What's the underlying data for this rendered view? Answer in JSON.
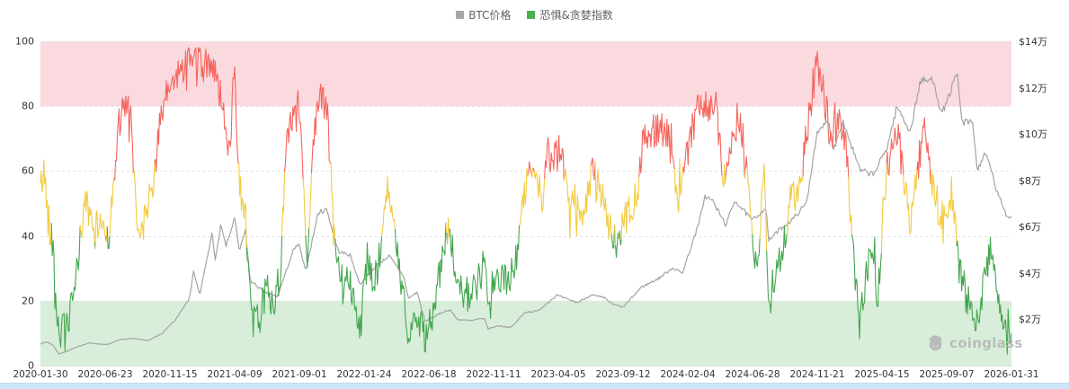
{
  "legend": {
    "items": [
      {
        "label": "BTC价格",
        "color": "#a6a6a6"
      },
      {
        "label": "恐惧&贪婪指数",
        "color": "#4caf50"
      }
    ]
  },
  "watermark": {
    "text": "coinglass"
  },
  "chart_data": {
    "type": "line",
    "x_axis": {
      "start": "2020-01-30",
      "end": "2026-01-31",
      "tick_labels": [
        "2020-01-30",
        "2020-06-23",
        "2020-11-15",
        "2021-04-09",
        "2021-09-01",
        "2022-01-24",
        "2022-06-18",
        "2022-11-11",
        "2023-04-05",
        "2023-09-12",
        "2024-02-04",
        "2024-06-28",
        "2024-11-21",
        "2025-04-15",
        "2025-09-07",
        "2026-01-31"
      ]
    },
    "y_left": {
      "min": 0,
      "max": 100,
      "ticks": [
        0,
        20,
        40,
        60,
        80,
        100
      ]
    },
    "y_right": {
      "min": 0,
      "max": 140000,
      "ticks": [
        {
          "value": 20000,
          "label": "$2万"
        },
        {
          "value": 40000,
          "label": "$4万"
        },
        {
          "value": 60000,
          "label": "$6万"
        },
        {
          "value": 80000,
          "label": "$8万"
        },
        {
          "value": 100000,
          "label": "$10万"
        },
        {
          "value": 120000,
          "label": "$12万"
        },
        {
          "value": 140000,
          "label": "$14万"
        }
      ]
    },
    "bands": [
      {
        "axis": "left",
        "from": 80,
        "to": 100,
        "color": "#fbdadf"
      },
      {
        "axis": "left",
        "from": 0,
        "to": 20,
        "color": "#d8eeda"
      }
    ],
    "grid": {
      "horizontal_dashed_at": [
        20,
        40,
        60,
        80,
        100
      ]
    },
    "series": [
      {
        "name": "BTC价格",
        "axis": "right",
        "color": "#a3a3a3",
        "noise": 0.015,
        "seed": 7,
        "samples": 900,
        "points": [
          [
            0.0,
            9400
          ],
          [
            0.007,
            10300
          ],
          [
            0.013,
            8800
          ],
          [
            0.019,
            5000
          ],
          [
            0.028,
            6400
          ],
          [
            0.042,
            8700
          ],
          [
            0.05,
            9800
          ],
          [
            0.056,
            9500
          ],
          [
            0.069,
            9100
          ],
          [
            0.083,
            11300
          ],
          [
            0.098,
            11700
          ],
          [
            0.111,
            10800
          ],
          [
            0.125,
            13800
          ],
          [
            0.139,
            19700
          ],
          [
            0.153,
            29000
          ],
          [
            0.158,
            40800
          ],
          [
            0.164,
            30400
          ],
          [
            0.177,
            57500
          ],
          [
            0.18,
            45200
          ],
          [
            0.186,
            61200
          ],
          [
            0.191,
            51300
          ],
          [
            0.2,
            63600
          ],
          [
            0.205,
            49100
          ],
          [
            0.211,
            58900
          ],
          [
            0.216,
            36700
          ],
          [
            0.222,
            34700
          ],
          [
            0.231,
            31600
          ],
          [
            0.244,
            29800
          ],
          [
            0.252,
            39500
          ],
          [
            0.26,
            49300
          ],
          [
            0.266,
            52700
          ],
          [
            0.273,
            40700
          ],
          [
            0.286,
            66000
          ],
          [
            0.295,
            67500
          ],
          [
            0.302,
            56000
          ],
          [
            0.307,
            49200
          ],
          [
            0.319,
            47700
          ],
          [
            0.329,
            35100
          ],
          [
            0.346,
            43200
          ],
          [
            0.359,
            47400
          ],
          [
            0.374,
            38600
          ],
          [
            0.379,
            29000
          ],
          [
            0.388,
            31800
          ],
          [
            0.396,
            19000
          ],
          [
            0.406,
            21200
          ],
          [
            0.415,
            23300
          ],
          [
            0.422,
            24100
          ],
          [
            0.429,
            20000
          ],
          [
            0.443,
            19400
          ],
          [
            0.457,
            20500
          ],
          [
            0.461,
            15900
          ],
          [
            0.471,
            17200
          ],
          [
            0.485,
            16500
          ],
          [
            0.499,
            23100
          ],
          [
            0.512,
            23500
          ],
          [
            0.526,
            28500
          ],
          [
            0.532,
            30400
          ],
          [
            0.539,
            29200
          ],
          [
            0.553,
            27200
          ],
          [
            0.567,
            30500
          ],
          [
            0.581,
            29200
          ],
          [
            0.589,
            26600
          ],
          [
            0.6,
            25200
          ],
          [
            0.619,
            33900
          ],
          [
            0.637,
            37700
          ],
          [
            0.651,
            42300
          ],
          [
            0.661,
            39900
          ],
          [
            0.678,
            61200
          ],
          [
            0.684,
            73100
          ],
          [
            0.692,
            71300
          ],
          [
            0.706,
            60600
          ],
          [
            0.715,
            71400
          ],
          [
            0.733,
            62700
          ],
          [
            0.747,
            68200
          ],
          [
            0.75,
            54000
          ],
          [
            0.762,
            59100
          ],
          [
            0.775,
            63300
          ],
          [
            0.789,
            70200
          ],
          [
            0.799,
            99000
          ],
          [
            0.811,
            106100
          ],
          [
            0.817,
            93400
          ],
          [
            0.826,
            106100
          ],
          [
            0.844,
            84300
          ],
          [
            0.858,
            82500
          ],
          [
            0.872,
            94200
          ],
          [
            0.882,
            111700
          ],
          [
            0.896,
            101000
          ],
          [
            0.906,
            122800
          ],
          [
            0.92,
            123300
          ],
          [
            0.928,
            108200
          ],
          [
            0.936,
            117000
          ],
          [
            0.944,
            126200
          ],
          [
            0.949,
            104900
          ],
          [
            0.96,
            105000
          ],
          [
            0.965,
            83600
          ],
          [
            0.972,
            92000
          ],
          [
            0.978,
            86000
          ],
          [
            0.985,
            75000
          ],
          [
            0.99,
            70000
          ],
          [
            0.996,
            64000
          ],
          [
            1.0,
            64500
          ]
        ]
      },
      {
        "name": "恐惧&贪婪指数",
        "axis": "left",
        "color_zones": [
          {
            "gte": 60,
            "color": "#f5655d"
          },
          {
            "gte": 40,
            "color": "#f3cb3f"
          },
          {
            "gte": 0,
            "color": "#44a64f"
          }
        ],
        "noise": 5.5,
        "seed": 42,
        "samples": 1150,
        "points": [
          [
            0.0,
            55
          ],
          [
            0.004,
            60
          ],
          [
            0.008,
            45
          ],
          [
            0.012,
            40
          ],
          [
            0.016,
            20
          ],
          [
            0.019,
            10
          ],
          [
            0.028,
            12
          ],
          [
            0.035,
            22
          ],
          [
            0.042,
            42
          ],
          [
            0.046,
            52
          ],
          [
            0.055,
            40
          ],
          [
            0.062,
            45
          ],
          [
            0.07,
            40
          ],
          [
            0.076,
            55
          ],
          [
            0.08,
            75
          ],
          [
            0.09,
            80
          ],
          [
            0.095,
            72
          ],
          [
            0.099,
            42
          ],
          [
            0.108,
            45
          ],
          [
            0.115,
            55
          ],
          [
            0.122,
            72
          ],
          [
            0.132,
            86
          ],
          [
            0.139,
            88
          ],
          [
            0.148,
            93
          ],
          [
            0.157,
            95
          ],
          [
            0.167,
            92
          ],
          [
            0.178,
            94
          ],
          [
            0.183,
            88
          ],
          [
            0.187,
            78
          ],
          [
            0.193,
            70
          ],
          [
            0.196,
            73
          ],
          [
            0.2,
            92
          ],
          [
            0.205,
            55
          ],
          [
            0.211,
            48
          ],
          [
            0.215,
            27
          ],
          [
            0.217,
            12
          ],
          [
            0.226,
            15
          ],
          [
            0.233,
            25
          ],
          [
            0.24,
            18
          ],
          [
            0.247,
            30
          ],
          [
            0.254,
            72
          ],
          [
            0.261,
            75
          ],
          [
            0.268,
            78
          ],
          [
            0.272,
            48
          ],
          [
            0.275,
            27
          ],
          [
            0.281,
            72
          ],
          [
            0.288,
            84
          ],
          [
            0.296,
            76
          ],
          [
            0.302,
            40
          ],
          [
            0.309,
            25
          ],
          [
            0.316,
            28
          ],
          [
            0.323,
            22
          ],
          [
            0.33,
            12
          ],
          [
            0.337,
            35
          ],
          [
            0.344,
            25
          ],
          [
            0.35,
            35
          ],
          [
            0.358,
            55
          ],
          [
            0.364,
            42
          ],
          [
            0.371,
            25
          ],
          [
            0.378,
            12
          ],
          [
            0.388,
            14
          ],
          [
            0.396,
            9
          ],
          [
            0.406,
            18
          ],
          [
            0.412,
            30
          ],
          [
            0.418,
            40
          ],
          [
            0.421,
            42
          ],
          [
            0.429,
            25
          ],
          [
            0.438,
            22
          ],
          [
            0.447,
            23
          ],
          [
            0.456,
            30
          ],
          [
            0.461,
            22
          ],
          [
            0.47,
            26
          ],
          [
            0.48,
            27
          ],
          [
            0.489,
            30
          ],
          [
            0.496,
            52
          ],
          [
            0.503,
            58
          ],
          [
            0.51,
            62
          ],
          [
            0.517,
            50
          ],
          [
            0.522,
            66
          ],
          [
            0.528,
            62
          ],
          [
            0.535,
            68
          ],
          [
            0.544,
            52
          ],
          [
            0.553,
            50
          ],
          [
            0.56,
            47
          ],
          [
            0.569,
            60
          ],
          [
            0.578,
            52
          ],
          [
            0.588,
            40
          ],
          [
            0.593,
            37
          ],
          [
            0.599,
            44
          ],
          [
            0.606,
            47
          ],
          [
            0.615,
            53
          ],
          [
            0.62,
            70
          ],
          [
            0.629,
            72
          ],
          [
            0.638,
            74
          ],
          [
            0.647,
            70
          ],
          [
            0.657,
            52
          ],
          [
            0.664,
            63
          ],
          [
            0.671,
            72
          ],
          [
            0.679,
            82
          ],
          [
            0.689,
            80
          ],
          [
            0.696,
            79
          ],
          [
            0.703,
            57
          ],
          [
            0.71,
            65
          ],
          [
            0.717,
            74
          ],
          [
            0.724,
            72
          ],
          [
            0.731,
            45
          ],
          [
            0.738,
            28
          ],
          [
            0.745,
            60
          ],
          [
            0.75,
            17
          ],
          [
            0.757,
            30
          ],
          [
            0.764,
            35
          ],
          [
            0.773,
            50
          ],
          [
            0.782,
            55
          ],
          [
            0.789,
            72
          ],
          [
            0.796,
            85
          ],
          [
            0.799,
            93
          ],
          [
            0.808,
            82
          ],
          [
            0.814,
            70
          ],
          [
            0.821,
            75
          ],
          [
            0.828,
            72
          ],
          [
            0.835,
            45
          ],
          [
            0.843,
            12
          ],
          [
            0.849,
            25
          ],
          [
            0.857,
            40
          ],
          [
            0.862,
            18
          ],
          [
            0.869,
            55
          ],
          [
            0.876,
            68
          ],
          [
            0.883,
            72
          ],
          [
            0.89,
            55
          ],
          [
            0.896,
            42
          ],
          [
            0.904,
            62
          ],
          [
            0.91,
            72
          ],
          [
            0.918,
            58
          ],
          [
            0.925,
            48
          ],
          [
            0.932,
            45
          ],
          [
            0.939,
            52
          ],
          [
            0.946,
            30
          ],
          [
            0.953,
            22
          ],
          [
            0.96,
            18
          ],
          [
            0.965,
            11
          ],
          [
            0.972,
            28
          ],
          [
            0.978,
            35
          ],
          [
            0.985,
            25
          ],
          [
            0.99,
            18
          ],
          [
            0.996,
            8
          ],
          [
            1.0,
            12
          ]
        ]
      }
    ]
  }
}
